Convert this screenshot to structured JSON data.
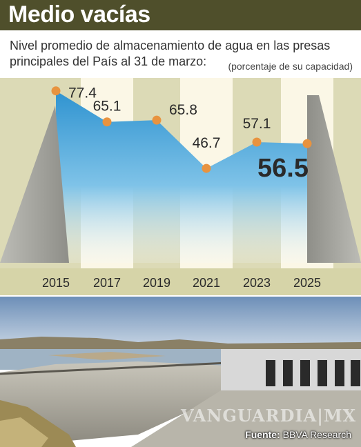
{
  "header": {
    "title": "Medio vacías",
    "subtitle": "Nivel promedio de almacenamiento de agua en las presas principales del País al 31 de marzo:",
    "unit": "(porcentaje de su capacidad)"
  },
  "chart_data": {
    "type": "area",
    "title": "Medio vacías",
    "subtitle": "Nivel promedio de almacenamiento de agua en las presas principales del País al 31 de marzo:",
    "unit": "(porcentaje de su capacidad)",
    "x": [
      2015,
      2017,
      2019,
      2021,
      2023,
      2025
    ],
    "values": [
      77.4,
      65.1,
      65.8,
      46.7,
      57.1,
      56.5
    ],
    "labels": [
      "77.4",
      "65.1",
      "65.8",
      "46.7",
      "57.1",
      "56.5"
    ],
    "highlight_index": 5,
    "ylim": [
      0,
      100
    ],
    "grid": false,
    "colors": {
      "area": "#3f9fd6",
      "marker": "#e8933f",
      "band": "#fbf7e6",
      "frame": "#d8d6b0",
      "dam_wall": "#a3a39c"
    }
  },
  "photo": {
    "source_label": "Fuente:",
    "source_value": "BBVA Research",
    "watermark": "VANGUARDIA|MX"
  }
}
